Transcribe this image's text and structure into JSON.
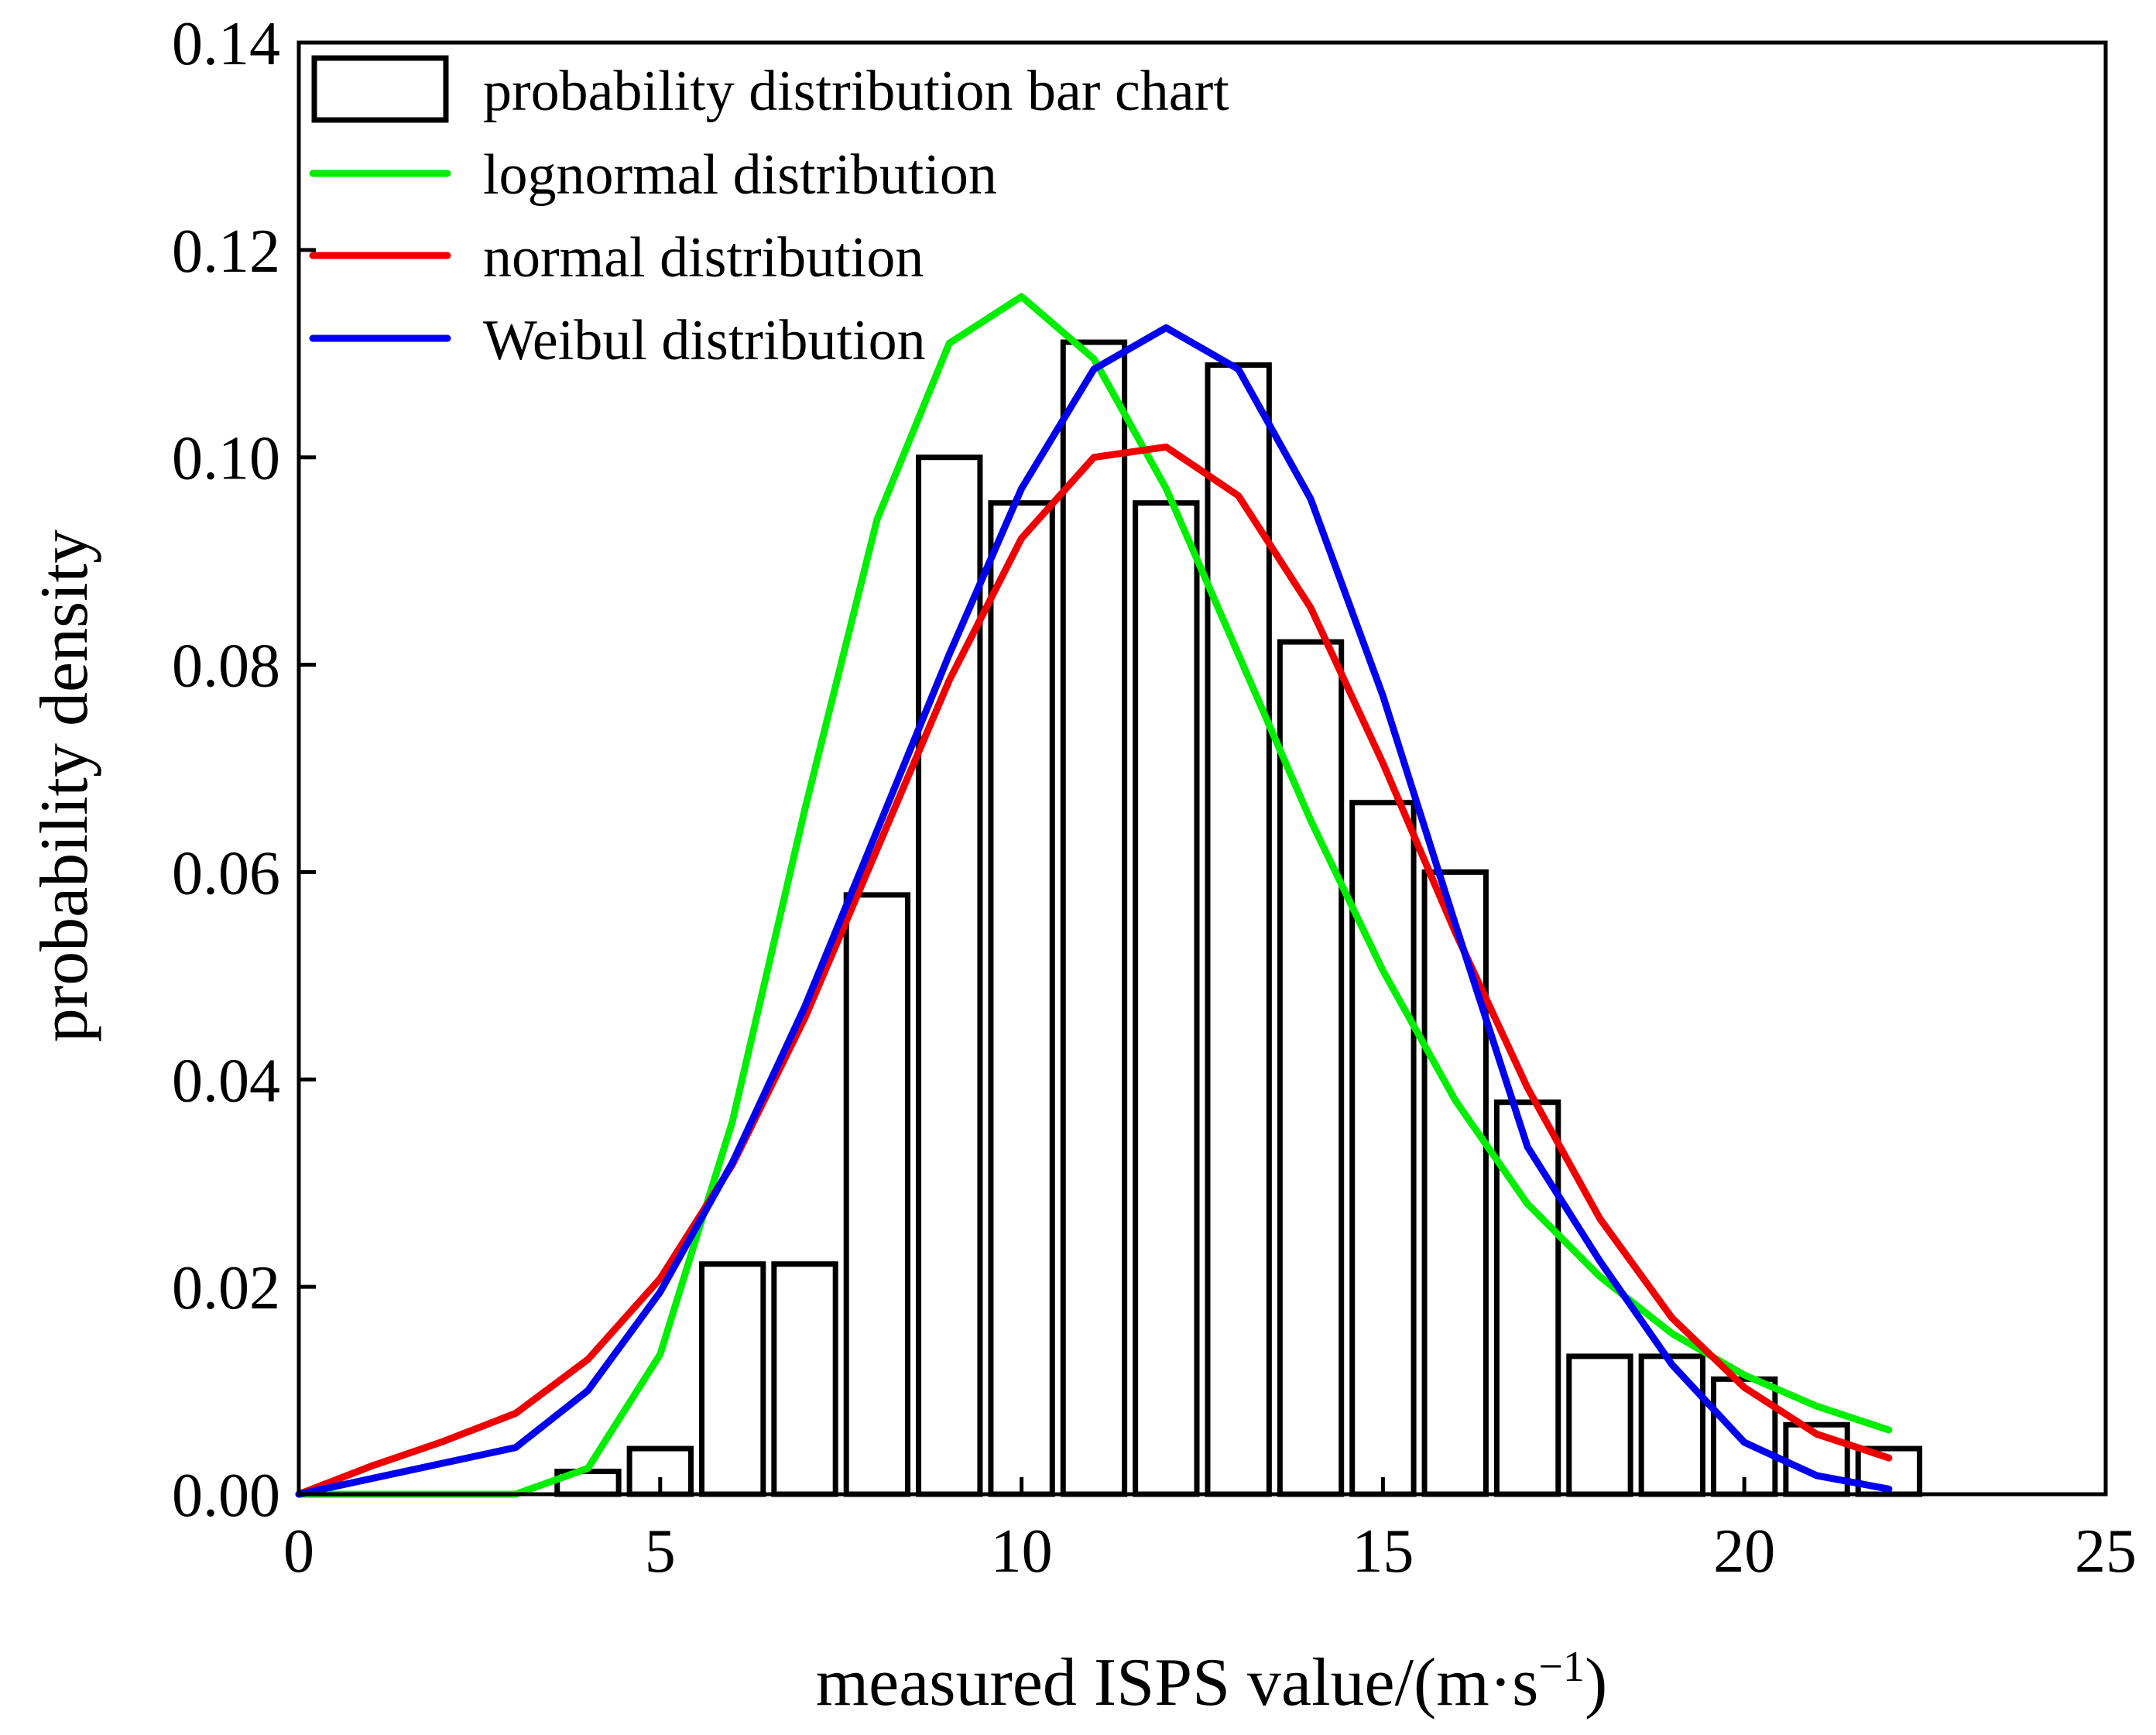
{
  "chart_data": {
    "type": "bar",
    "title": "",
    "xlabel": "measured ISPS value/(m·s",
    "xlabel_superscript": "−1",
    "xlabel_suffix": ")",
    "ylabel": "probability density",
    "xlim": [
      0,
      25
    ],
    "ylim": [
      0,
      0.14
    ],
    "xticks": [
      "0",
      "5",
      "10",
      "15",
      "20",
      "25"
    ],
    "yticks": [
      "0.00",
      "0.02",
      "0.04",
      "0.06",
      "0.08",
      "0.10",
      "0.12",
      "0.14"
    ],
    "grid": false,
    "legend_position": "top-left",
    "histogram": {
      "name": "probability distribution bar chart",
      "bin_width": 0.85,
      "centers": [
        4,
        5,
        6,
        7,
        8,
        9,
        10,
        11,
        12,
        13,
        14,
        15,
        16,
        17,
        18,
        19,
        20,
        21,
        22
      ],
      "values": [
        0.0022,
        0.0044,
        0.0222,
        0.0222,
        0.0578,
        0.1,
        0.0956,
        0.1111,
        0.0956,
        0.1089,
        0.0822,
        0.0667,
        0.06,
        0.0378,
        0.0133,
        0.0133,
        0.0111,
        0.0067,
        0.0044
      ]
    },
    "series": [
      {
        "name": "lognormal distribution",
        "color": "#00ee00",
        "x": [
          0,
          3,
          4,
          5,
          6,
          7,
          8,
          9,
          10,
          11,
          12,
          13,
          14,
          15,
          16,
          17,
          18,
          19,
          20,
          21,
          22
        ],
        "values": [
          0,
          0,
          0.0025,
          0.0135,
          0.036,
          0.066,
          0.094,
          0.111,
          0.1155,
          0.1095,
          0.097,
          0.081,
          0.065,
          0.0505,
          0.038,
          0.028,
          0.021,
          0.0155,
          0.0115,
          0.0085,
          0.0062
        ]
      },
      {
        "name": "normal distribution",
        "color": "#ee0000",
        "x": [
          0,
          1,
          2,
          3,
          4,
          5,
          6,
          7,
          8,
          9,
          10,
          11,
          12,
          13,
          14,
          15,
          16,
          17,
          18,
          19,
          20,
          21,
          22
        ],
        "values": [
          0,
          0.0027,
          0.0051,
          0.0078,
          0.013,
          0.0208,
          0.0318,
          0.0459,
          0.0622,
          0.0785,
          0.0922,
          0.1,
          0.101,
          0.0963,
          0.0855,
          0.0705,
          0.0542,
          0.0392,
          0.0266,
          0.017,
          0.0103,
          0.0058,
          0.0035
        ]
      },
      {
        "name": "Weibul distribution",
        "color": "#0000ee",
        "x": [
          0,
          3,
          4,
          5,
          6,
          7,
          8,
          9,
          10,
          11,
          12,
          13,
          14,
          15,
          16,
          17,
          18,
          19,
          20,
          21,
          22
        ],
        "values": [
          0,
          0.0045,
          0.01,
          0.0195,
          0.032,
          0.047,
          0.064,
          0.081,
          0.097,
          0.1085,
          0.1125,
          0.1085,
          0.096,
          0.077,
          0.055,
          0.0335,
          0.0225,
          0.0125,
          0.005,
          0.0018,
          0.0005
        ]
      }
    ]
  }
}
